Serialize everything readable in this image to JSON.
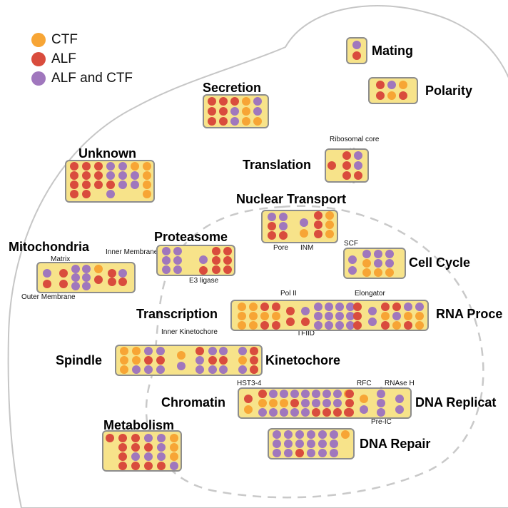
{
  "colors": {
    "ctf": "#f7a535",
    "alf": "#d94c3d",
    "both": "#a077bd",
    "box_fill": "#f7e38a",
    "box_border": "#8d8d8d",
    "cell_outline": "#c6c6c6"
  },
  "legend": [
    {
      "label": "CTF",
      "color": "#f7a535"
    },
    {
      "label": "ALF",
      "color": "#d94c3d"
    },
    {
      "label": "ALF and CTF",
      "color": "#a077bd"
    }
  ],
  "compartments": {
    "mating": "Mating",
    "polarity": "Polarity",
    "secretion": "Secretion",
    "translation": "Translation",
    "unknown": "Unknown",
    "nuclear_transport": "Nuclear Transport",
    "mitochondria": "Mitochondria",
    "proteasome": "Proteasome",
    "cell_cycle": "Cell Cycle",
    "transcription": "Transcription",
    "rna_processing": "RNA Proce",
    "spindle": "Spindle",
    "kinetochore": "Kinetochore",
    "chromatin": "Chromatin",
    "dna_replication": "DNA Replicat",
    "metabolism": "Metabolism",
    "dna_repair": "DNA Repair"
  },
  "complexes": {
    "ribosomal_core": "Ribosomal core",
    "pore": "Pore",
    "inm": "INM",
    "matrix": "Matrix",
    "inner_membrane": "Inner Membrane",
    "outer_membrane": "Outer Membrane",
    "e3_ligase": "E3 ligase",
    "scf": "SCF",
    "pol_ii": "Pol II",
    "elongator": "Elongator",
    "tfiid": "TFIID",
    "inner_kinetochore": "Inner Kinetochore",
    "hst3_4": "HST3-4",
    "rfc": "RFC",
    "rnase_h": "RNAse H",
    "pre_ic": "Pre-IC"
  }
}
